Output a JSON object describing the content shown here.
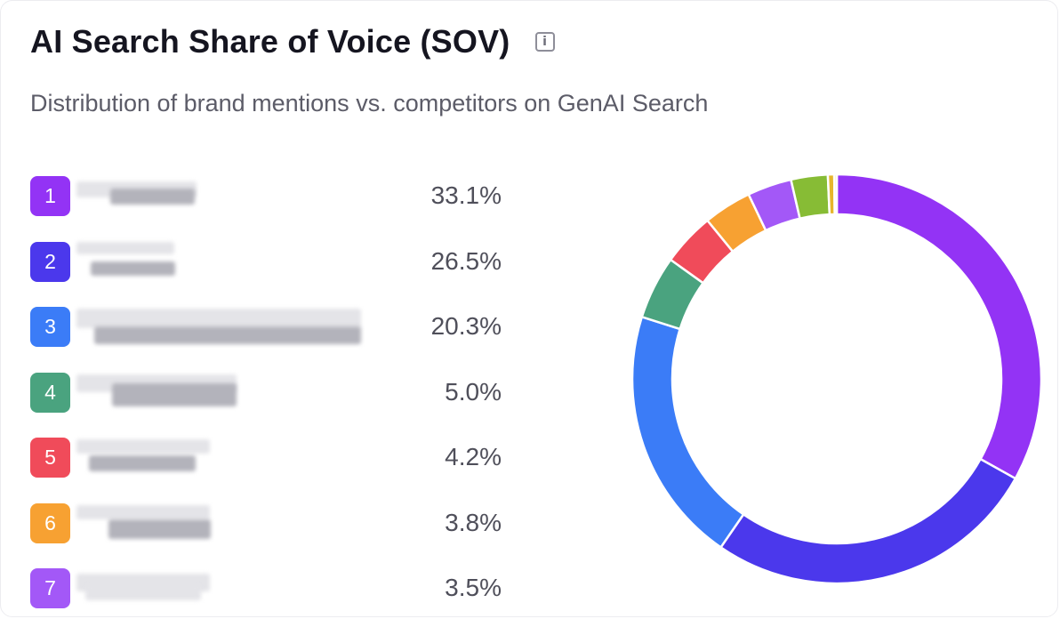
{
  "header": {
    "title": "AI Search Share of Voice (SOV)",
    "info_glyph": "i",
    "info_icon": "info-icon",
    "subtitle": "Distribution of brand mentions vs. competitors on GenAI Search"
  },
  "chart_data": {
    "type": "pie",
    "variant": "donut",
    "title": "AI Search Share of Voice (SOV)",
    "subtitle": "Distribution of brand mentions vs. competitors on GenAI Search",
    "legend_placement": "left",
    "slices": [
      {
        "rank": "1",
        "label": "",
        "value": 33.1,
        "display": "33.1%",
        "color": "#9333f5"
      },
      {
        "rank": "2",
        "label": "",
        "value": 26.5,
        "display": "26.5%",
        "color": "#4b38ec"
      },
      {
        "rank": "3",
        "label": "",
        "value": 20.3,
        "display": "20.3%",
        "color": "#3b7cf7"
      },
      {
        "rank": "4",
        "label": "",
        "value": 5.0,
        "display": "5.0%",
        "color": "#4aa37f"
      },
      {
        "rank": "5",
        "label": "",
        "value": 4.2,
        "display": "4.2%",
        "color": "#f04b5a"
      },
      {
        "rank": "6",
        "label": "",
        "value": 3.8,
        "display": "3.8%",
        "color": "#f7a132"
      },
      {
        "rank": "7",
        "label": "",
        "value": 3.5,
        "display": "3.5%",
        "color": "#a358f7"
      },
      {
        "rank": "",
        "label": "",
        "value": 2.9,
        "display": "",
        "color": "#87bc35"
      },
      {
        "rank": "",
        "label": "",
        "value": 0.5,
        "display": "",
        "color": "#e6b62c"
      },
      {
        "rank": "",
        "label": "",
        "value": 0.2,
        "display": "",
        "color": "#f3ee95"
      }
    ],
    "brand_names_redacted": true
  }
}
